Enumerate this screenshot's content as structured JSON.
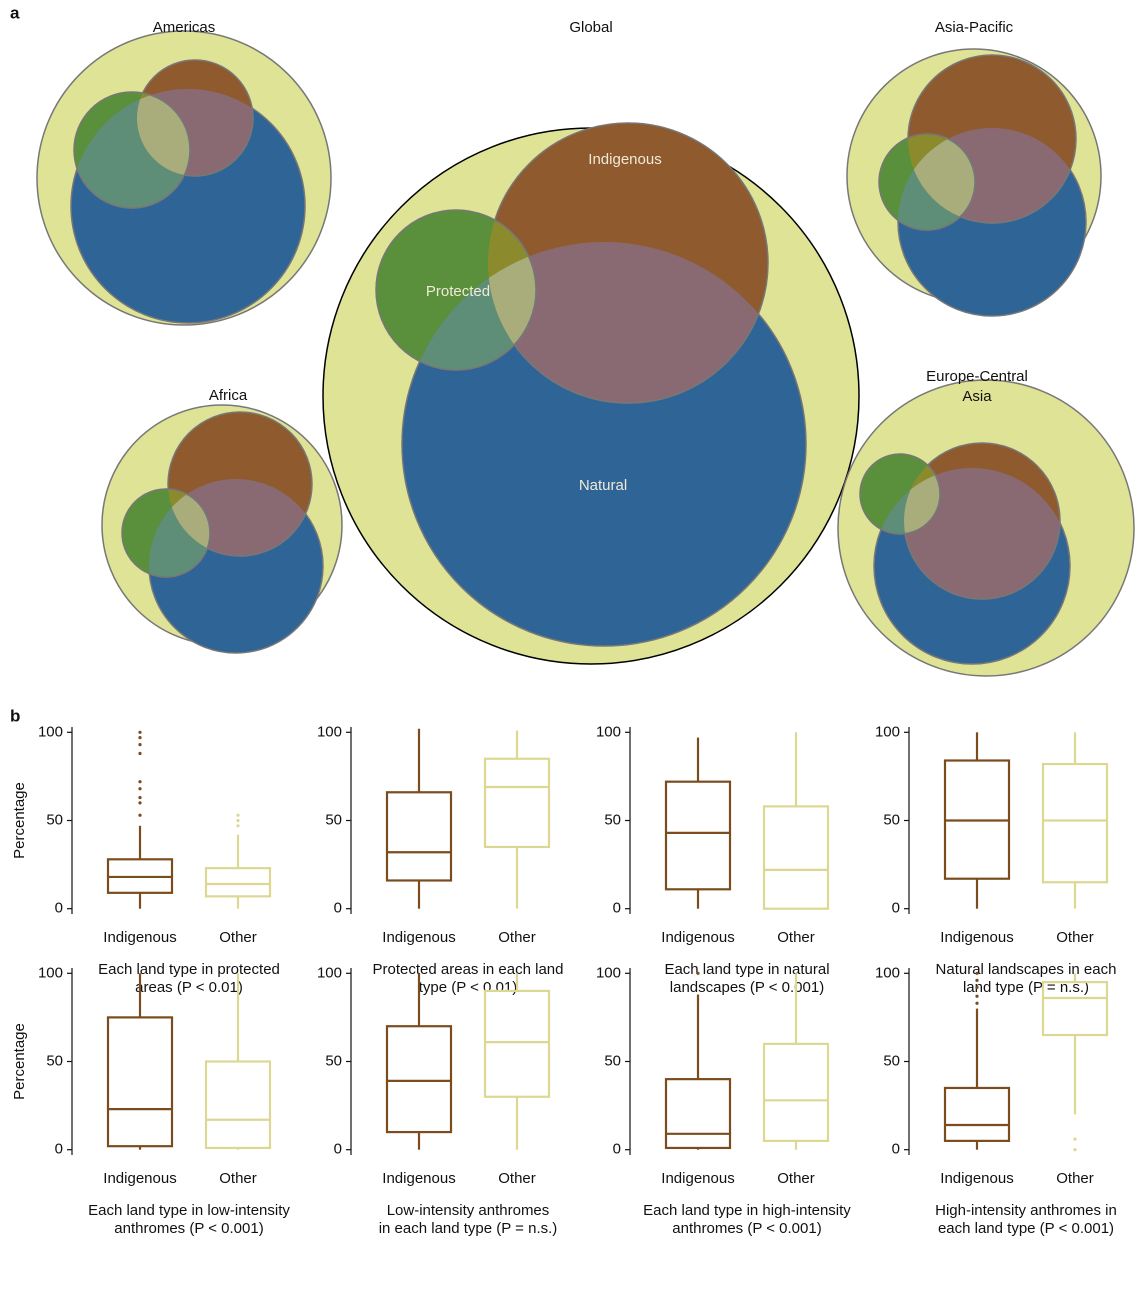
{
  "panel_a": {
    "label": "a",
    "venns": [
      {
        "title": [
          "Americas"
        ]
      },
      {
        "title": [
          "Global"
        ],
        "labels": [
          "Indigenous",
          "Protected",
          "Natural"
        ]
      },
      {
        "title": [
          "Asia-Pacific"
        ]
      },
      {
        "title": [
          "Africa"
        ]
      },
      {
        "title": [
          "Europe-Central",
          "Asia"
        ]
      }
    ]
  },
  "panel_b_label": "b",
  "chart_data": [
    {
      "type": "box",
      "xlabel": [
        "Each land type in protected",
        "areas (P < 0.01)"
      ],
      "ylabel": "Percentage",
      "ylim": [
        -3,
        103
      ],
      "yticks": [
        0,
        50,
        100
      ],
      "categories": [
        "Indigenous",
        "Other"
      ],
      "boxes": [
        {
          "color": "#7a4c1e",
          "whislo": 0,
          "q1": 9,
          "med": 18,
          "q3": 28,
          "whishi": 47,
          "fliers": [
            53,
            60,
            63,
            68,
            72,
            88,
            93,
            97,
            100
          ]
        },
        {
          "color": "#dcd893",
          "whislo": 0,
          "q1": 7,
          "med": 14,
          "q3": 23,
          "whishi": 42,
          "fliers": [
            47,
            50,
            53
          ]
        }
      ]
    },
    {
      "type": "box",
      "xlabel": [
        "Protected areas in each land",
        "type (P < 0.01)"
      ],
      "ylim": [
        -3,
        103
      ],
      "yticks": [
        0,
        50,
        100
      ],
      "categories": [
        "Indigenous",
        "Other"
      ],
      "boxes": [
        {
          "color": "#7a4c1e",
          "whislo": 0,
          "q1": 16,
          "med": 32,
          "q3": 66,
          "whishi": 102,
          "fliers": []
        },
        {
          "color": "#dcd893",
          "whislo": 0,
          "q1": 35,
          "med": 69,
          "q3": 85,
          "whishi": 101,
          "fliers": []
        }
      ]
    },
    {
      "type": "box",
      "xlabel": [
        "Each land type in natural",
        "landscapes (P < 0.001)"
      ],
      "ylim": [
        -3,
        103
      ],
      "yticks": [
        0,
        50,
        100
      ],
      "categories": [
        "Indigenous",
        "Other"
      ],
      "boxes": [
        {
          "color": "#7a4c1e",
          "whislo": 0,
          "q1": 11,
          "med": 43,
          "q3": 72,
          "whishi": 97,
          "fliers": []
        },
        {
          "color": "#dcd893",
          "whislo": 0,
          "q1": 0,
          "med": 22,
          "q3": 58,
          "whishi": 100,
          "fliers": []
        }
      ]
    },
    {
      "type": "box",
      "xlabel": [
        "Natural landscapes in each",
        "land type (P = n.s.)"
      ],
      "ylim": [
        -3,
        103
      ],
      "yticks": [
        0,
        50,
        100
      ],
      "categories": [
        "Indigenous",
        "Other"
      ],
      "boxes": [
        {
          "color": "#7a4c1e",
          "whislo": 0,
          "q1": 17,
          "med": 50,
          "q3": 84,
          "whishi": 100,
          "fliers": []
        },
        {
          "color": "#dcd893",
          "whislo": 0,
          "q1": 15,
          "med": 50,
          "q3": 82,
          "whishi": 100,
          "fliers": []
        }
      ]
    },
    {
      "type": "box",
      "xlabel": [
        "Each land type in low-intensity",
        "anthromes (P < 0.001)"
      ],
      "ylabel": "Percentage",
      "ylim": [
        -3,
        103
      ],
      "yticks": [
        0,
        50,
        100
      ],
      "categories": [
        "Indigenous",
        "Other"
      ],
      "boxes": [
        {
          "color": "#7a4c1e",
          "whislo": 0,
          "q1": 2,
          "med": 23,
          "q3": 75,
          "whishi": 100,
          "fliers": []
        },
        {
          "color": "#dcd893",
          "whislo": 0,
          "q1": 1,
          "med": 17,
          "q3": 50,
          "whishi": 100,
          "fliers": []
        }
      ]
    },
    {
      "type": "box",
      "xlabel": [
        "Low-intensity anthromes",
        "in each land type (P = n.s.)"
      ],
      "ylim": [
        -3,
        103
      ],
      "yticks": [
        0,
        50,
        100
      ],
      "categories": [
        "Indigenous",
        "Other"
      ],
      "boxes": [
        {
          "color": "#7a4c1e",
          "whislo": 0,
          "q1": 10,
          "med": 39,
          "q3": 70,
          "whishi": 100,
          "fliers": []
        },
        {
          "color": "#dcd893",
          "whislo": 0,
          "q1": 30,
          "med": 61,
          "q3": 90,
          "whishi": 100,
          "fliers": []
        }
      ]
    },
    {
      "type": "box",
      "xlabel": [
        "Each land type in high-intensity",
        "anthromes (P < 0.001)"
      ],
      "ylim": [
        -3,
        103
      ],
      "yticks": [
        0,
        50,
        100
      ],
      "categories": [
        "Indigenous",
        "Other"
      ],
      "boxes": [
        {
          "color": "#7a4c1e",
          "whislo": 0,
          "q1": 1,
          "med": 9,
          "q3": 40,
          "whishi": 88,
          "fliers": [
            100
          ]
        },
        {
          "color": "#dcd893",
          "whislo": 0,
          "q1": 5,
          "med": 28,
          "q3": 60,
          "whishi": 100,
          "fliers": []
        }
      ]
    },
    {
      "type": "box",
      "xlabel": [
        "High-intensity anthromes in",
        "each land type (P < 0.001)"
      ],
      "ylim": [
        -3,
        103
      ],
      "yticks": [
        0,
        50,
        100
      ],
      "categories": [
        "Indigenous",
        "Other"
      ],
      "boxes": [
        {
          "color": "#7a4c1e",
          "whislo": 0,
          "q1": 5,
          "med": 14,
          "q3": 35,
          "whishi": 80,
          "fliers": [
            83,
            87,
            92,
            96,
            100
          ]
        },
        {
          "color": "#dcd893",
          "whislo": 20,
          "q1": 65,
          "med": 86,
          "q3": 95,
          "whishi": 100,
          "fliers": [
            6,
            0
          ]
        }
      ]
    }
  ]
}
